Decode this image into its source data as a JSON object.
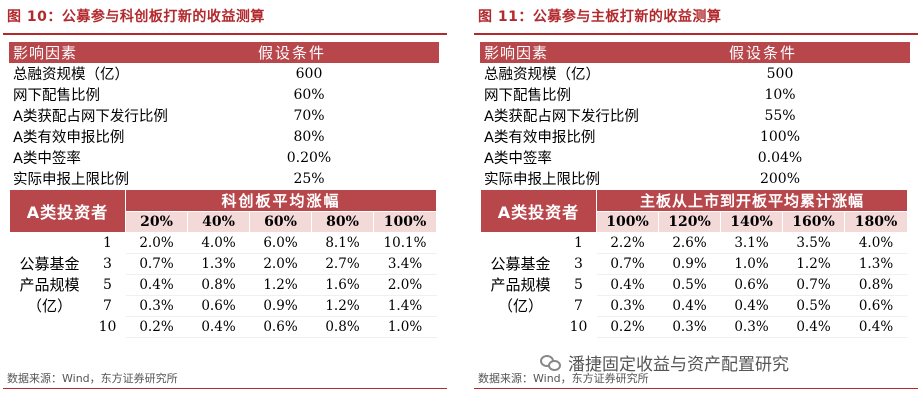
{
  "left": {
    "title": "图 10：公募参与科创板打新的收益测算",
    "assumptions_header": [
      "影响因素",
      "假设条件"
    ],
    "assumptions": [
      {
        "factor": "总融资规模（亿）",
        "value": "600"
      },
      {
        "factor": "网下配售比例",
        "value": "60%"
      },
      {
        "factor": "A类获配占网下发行比例",
        "value": "70%"
      },
      {
        "factor": "A类有效申报比例",
        "value": "80%"
      },
      {
        "factor": "A类中签率",
        "value": "0.20%"
      },
      {
        "factor": "实际申报上限比例",
        "value": "25%"
      }
    ],
    "matrix": {
      "corner": "A类投资者",
      "span_header": "科创板平均涨幅",
      "columns": [
        "20%",
        "40%",
        "60%",
        "80%",
        "100%"
      ],
      "row_category": "公募基金产品规模（亿）",
      "rows": [
        {
          "scale": "1",
          "values": [
            "2.0%",
            "4.0%",
            "6.0%",
            "8.1%",
            "10.1%"
          ]
        },
        {
          "scale": "3",
          "values": [
            "0.7%",
            "1.3%",
            "2.0%",
            "2.7%",
            "3.4%"
          ]
        },
        {
          "scale": "5",
          "values": [
            "0.4%",
            "0.8%",
            "1.2%",
            "1.6%",
            "2.0%"
          ]
        },
        {
          "scale": "7",
          "values": [
            "0.3%",
            "0.6%",
            "0.9%",
            "1.2%",
            "1.4%"
          ]
        },
        {
          "scale": "10",
          "values": [
            "0.2%",
            "0.4%",
            "0.6%",
            "0.8%",
            "1.0%"
          ]
        }
      ]
    },
    "source": "数据来源：Wind，东方证券研究所"
  },
  "right": {
    "title": "图 11：公募参与主板打新的收益测算",
    "assumptions_header": [
      "影响因素",
      "假设条件"
    ],
    "assumptions": [
      {
        "factor": "总融资规模（亿）",
        "value": "500"
      },
      {
        "factor": "网下配售比例",
        "value": "10%"
      },
      {
        "factor": "A类获配占网下发行比例",
        "value": "55%"
      },
      {
        "factor": "A类有效申报比例",
        "value": "100%"
      },
      {
        "factor": "A类中签率",
        "value": "0.04%"
      },
      {
        "factor": "实际申报上限比例",
        "value": "200%"
      }
    ],
    "matrix": {
      "corner": "A类投资者",
      "span_header": "主板从上市到开板平均累计涨幅",
      "columns": [
        "100%",
        "120%",
        "140%",
        "160%",
        "180%"
      ],
      "row_category": "公募基金产品规模（亿）",
      "rows": [
        {
          "scale": "1",
          "values": [
            "2.2%",
            "2.6%",
            "3.1%",
            "3.5%",
            "4.0%"
          ]
        },
        {
          "scale": "3",
          "values": [
            "0.7%",
            "0.9%",
            "1.0%",
            "1.2%",
            "1.3%"
          ]
        },
        {
          "scale": "5",
          "values": [
            "0.4%",
            "0.5%",
            "0.6%",
            "0.7%",
            "0.8%"
          ]
        },
        {
          "scale": "7",
          "values": [
            "0.3%",
            "0.4%",
            "0.4%",
            "0.5%",
            "0.6%"
          ]
        },
        {
          "scale": "10",
          "values": [
            "0.2%",
            "0.3%",
            "0.3%",
            "0.4%",
            "0.4%"
          ]
        }
      ]
    },
    "source": "数据来源：Wind，东方证券研究所"
  },
  "watermark": {
    "text": "潘捷固定收益与资产配置研究",
    "icon": "wechat-icon"
  }
}
